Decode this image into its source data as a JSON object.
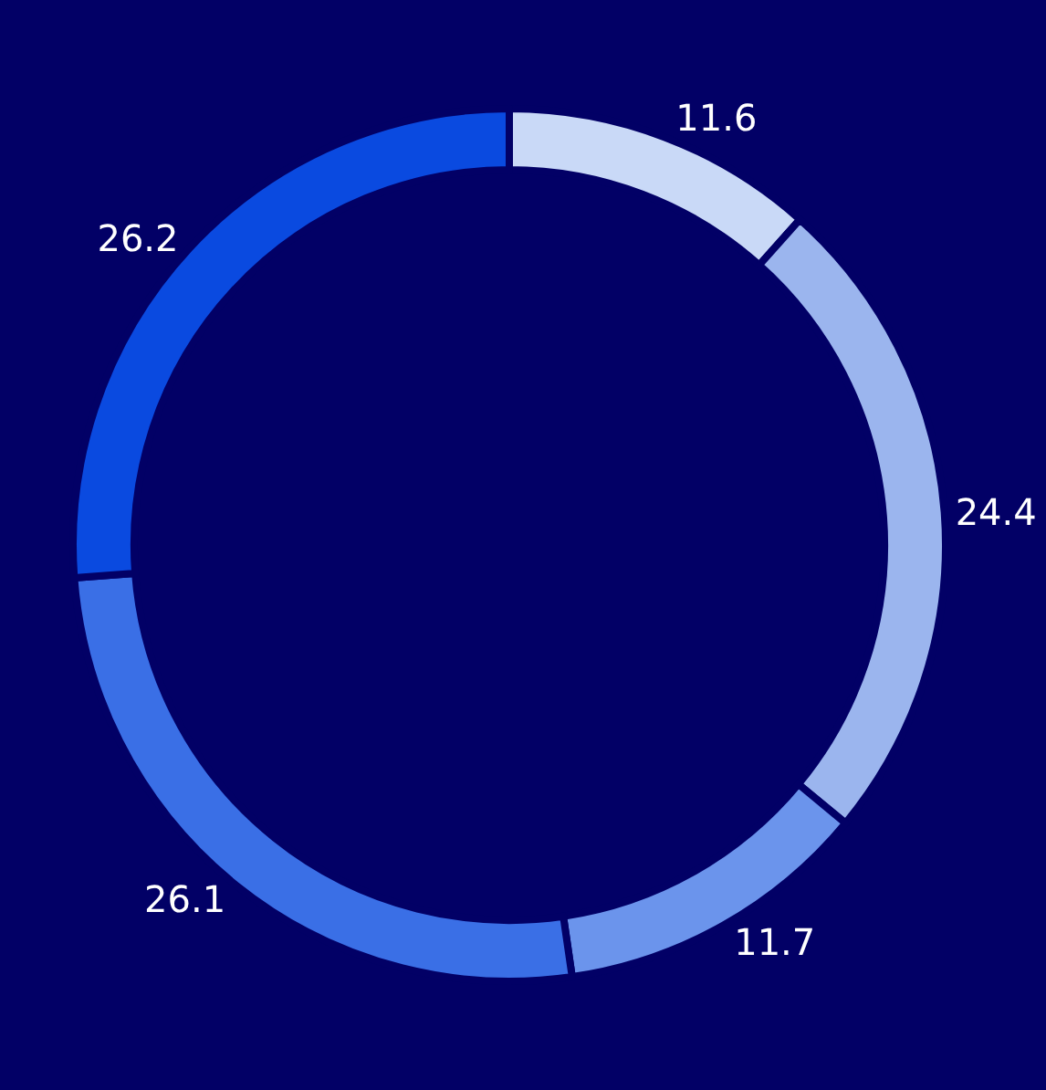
{
  "chart_data": {
    "type": "donut",
    "categories": [
      null,
      null,
      null,
      null,
      null
    ],
    "values": [
      11.6,
      24.4,
      11.7,
      26.1,
      26.2
    ],
    "colors": [
      "#c9d9f7",
      "#9bb5ee",
      "#6b94ec",
      "#3a6fe6",
      "#0a4ae0"
    ],
    "data_labels": true
  }
}
